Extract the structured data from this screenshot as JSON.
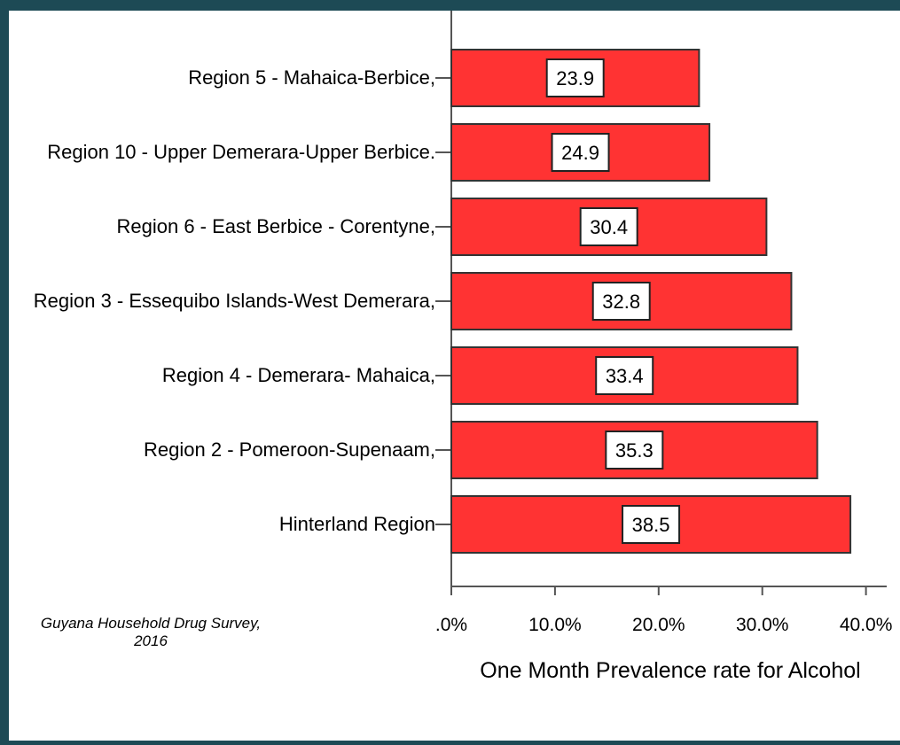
{
  "chart_data": {
    "type": "bar",
    "orientation": "horizontal",
    "categories": [
      "Region 5 - Mahaica-Berbice,",
      "Region 10 - Upper Demerara-Upper Berbice.",
      "Region 6 - East Berbice - Corentyne,",
      "Region 3 - Essequibo Islands-West Demerara,",
      "Region 4 - Demerara- Mahaica,",
      "Region 2 - Pomeroon-Supenaam,",
      "Hinterland Region"
    ],
    "values": [
      23.9,
      24.9,
      30.4,
      32.8,
      33.4,
      35.3,
      38.5
    ],
    "color": "#ff3333",
    "xlim": [
      0,
      42
    ],
    "xticks": [
      {
        "value": 0,
        "label": ".0%"
      },
      {
        "value": 10,
        "label": "10.0%"
      },
      {
        "value": 20,
        "label": "20.0%"
      },
      {
        "value": 30,
        "label": "30.0%"
      },
      {
        "value": 40,
        "label": "40.0%"
      }
    ],
    "xlabel": "One Month Prevalence rate for Alcohol",
    "annotation": "Guyana Household Drug Survey, 2016"
  }
}
